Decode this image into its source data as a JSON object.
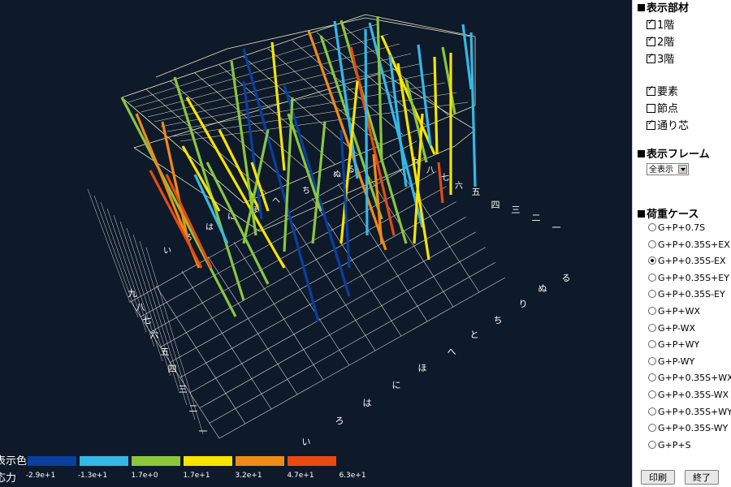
{
  "panel": {
    "members": {
      "title": "表示部材",
      "items": [
        {
          "label": "1階",
          "checked": true
        },
        {
          "label": "2階",
          "checked": true
        },
        {
          "label": "3階",
          "checked": true
        }
      ]
    },
    "display": {
      "items": [
        {
          "label": "要素",
          "checked": true
        },
        {
          "label": "節点",
          "checked": false
        },
        {
          "label": "通り芯",
          "checked": true
        }
      ]
    },
    "frame": {
      "title": "表示フレーム",
      "selected": "全表示"
    },
    "load_cases": {
      "title": "荷重ケース",
      "options": [
        "G+P+0.7S",
        "G+P+0.35S+EX",
        "G+P+0.35S-EX",
        "G+P+0.35S+EY",
        "G+P+0.35S-EY",
        "G+P+WX",
        "G+P-WX",
        "G+P+WY",
        "G+P-WY",
        "G+P+0.35S+WX",
        "G+P+0.35S-WX",
        "G+P+0.35S+WY",
        "G+P+0.35S-WY",
        "G+P+S"
      ],
      "selected_index": 2
    },
    "buttons": {
      "print": "印刷",
      "exit": "終了"
    }
  },
  "legend": {
    "color_label": "表示色",
    "force_label": "応力",
    "colors": [
      "#0a3fa0",
      "#35b8e6",
      "#8cc63c",
      "#f7e400",
      "#f08a16",
      "#e84a10"
    ],
    "ticks": [
      "-2.9e+1",
      "-1.3e+1",
      "1.7e+0",
      "1.7e+1",
      "3.2e+1",
      "4.7e+1",
      "6.3e+1"
    ]
  },
  "axes": {
    "left_labels": [
      "九",
      "八",
      "七",
      "六",
      "五",
      "四",
      "三",
      "二",
      "一"
    ],
    "bottom_labels": [
      "い",
      "ろ",
      "は",
      "に",
      "ほ",
      "へ",
      "と",
      "ち",
      "り",
      "ぬ",
      "る"
    ],
    "right_labels": [
      "五",
      "四",
      "三",
      "二",
      "一"
    ],
    "top_near_labels": [
      "七",
      "六",
      "八",
      "九"
    ],
    "upper_labels": [
      "い",
      "ろ",
      "は",
      "に",
      "ほ",
      "へ",
      "ち",
      "ぬ",
      "る"
    ]
  }
}
